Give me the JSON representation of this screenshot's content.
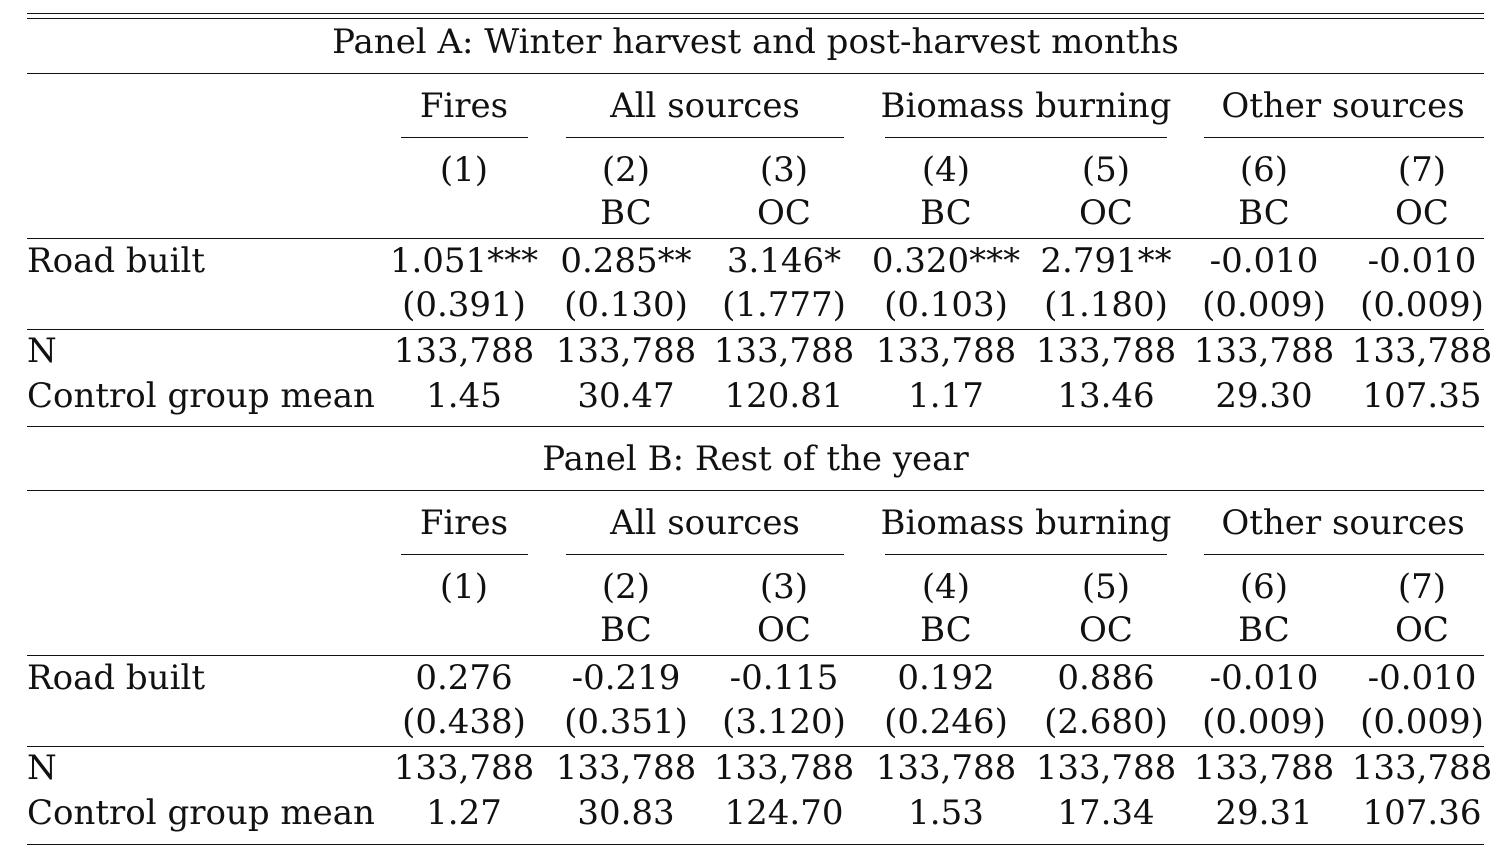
{
  "panels": [
    {
      "title": "Panel A: Winter harvest and post-harvest months",
      "groups": [
        "Fires",
        "All sources",
        "Biomass burning",
        "Other sources"
      ],
      "col_numbers": [
        "(1)",
        "(2)",
        "(3)",
        "(4)",
        "(5)",
        "(6)",
        "(7)"
      ],
      "col_types": [
        "",
        "BC",
        "OC",
        "BC",
        "OC",
        "BC",
        "OC"
      ],
      "road_label": "Road built",
      "road_coef": [
        "1.051***",
        "0.285**",
        "3.146*",
        "0.320***",
        "2.791**",
        "-0.010",
        "-0.010"
      ],
      "road_se": [
        "(0.391)",
        "(0.130)",
        "(1.777)",
        "(0.103)",
        "(1.180)",
        "(0.009)",
        "(0.009)"
      ],
      "n_label": "N",
      "n_values": [
        "133,788",
        "133,788",
        "133,788",
        "133,788",
        "133,788",
        "133,788",
        "133,788"
      ],
      "mean_label": "Control group mean",
      "mean_values": [
        "1.45",
        "30.47",
        "120.81",
        "1.17",
        "13.46",
        "29.30",
        "107.35"
      ]
    },
    {
      "title": "Panel B: Rest of the year",
      "groups": [
        "Fires",
        "All sources",
        "Biomass burning",
        "Other sources"
      ],
      "col_numbers": [
        "(1)",
        "(2)",
        "(3)",
        "(4)",
        "(5)",
        "(6)",
        "(7)"
      ],
      "col_types": [
        "",
        "BC",
        "OC",
        "BC",
        "OC",
        "BC",
        "OC"
      ],
      "road_label": "Road built",
      "road_coef": [
        "0.276",
        "-0.219",
        "-0.115",
        "0.192",
        "0.886",
        "-0.010",
        "-0.010"
      ],
      "road_se": [
        "(0.438)",
        "(0.351)",
        "(3.120)",
        "(0.246)",
        "(2.680)",
        "(0.009)",
        "(0.009)"
      ],
      "n_label": "N",
      "n_values": [
        "133,788",
        "133,788",
        "133,788",
        "133,788",
        "133,788",
        "133,788",
        "133,788"
      ],
      "mean_label": "Control group mean",
      "mean_values": [
        "1.27",
        "30.83",
        "124.70",
        "1.53",
        "17.34",
        "29.31",
        "107.36"
      ]
    }
  ]
}
